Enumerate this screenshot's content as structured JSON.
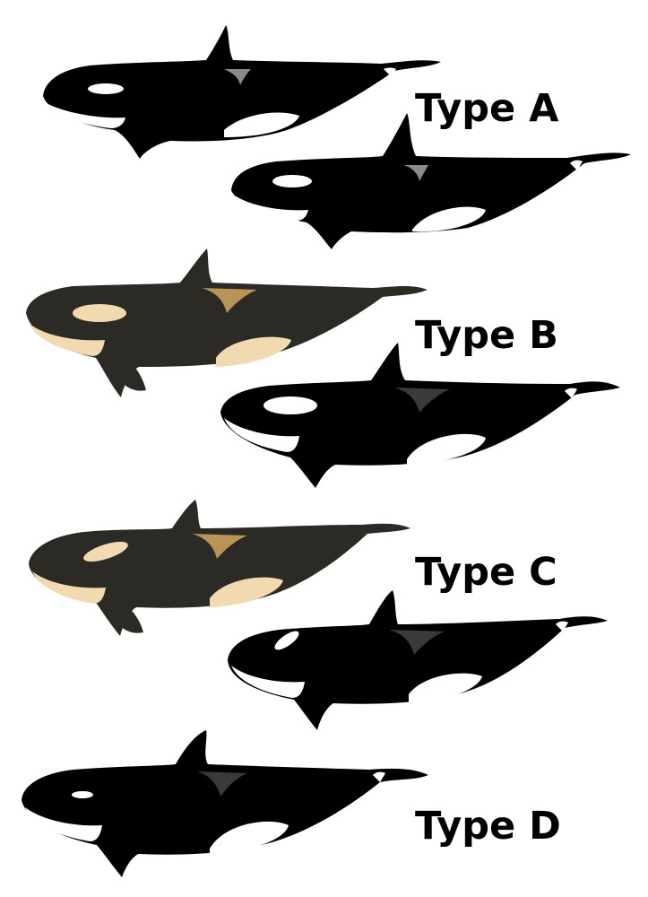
{
  "labels": {
    "type_a": "Type A",
    "type_b": "Type B",
    "type_c": "Type C",
    "type_d": "Type D"
  },
  "colors": {
    "background": "#ffffff",
    "body_black": "#000000",
    "body_dark_gray": "#2b2a24",
    "patch_white": "#ffffff",
    "patch_cream": "#f1d9b0",
    "patch_tan": "#b89456",
    "saddle_gray": "#8a8a8a",
    "text": "#000000"
  },
  "figures": [
    {
      "name": "orca-type-a-1",
      "variant": "black"
    },
    {
      "name": "orca-type-a-2",
      "variant": "black"
    },
    {
      "name": "orca-type-b-1",
      "variant": "tan"
    },
    {
      "name": "orca-type-b-2",
      "variant": "black"
    },
    {
      "name": "orca-type-c-1",
      "variant": "tan"
    },
    {
      "name": "orca-type-c-2",
      "variant": "black"
    },
    {
      "name": "orca-type-d-1",
      "variant": "black"
    }
  ]
}
